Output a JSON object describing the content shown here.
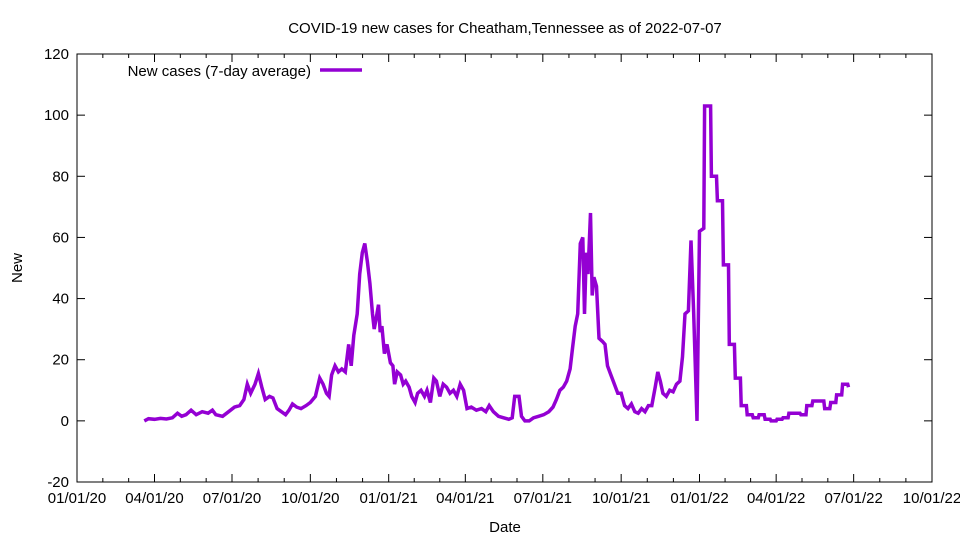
{
  "chart_data": {
    "type": "line",
    "title": "COVID-19 new cases for Cheatham,Tennessee as of 2022-07-07",
    "xlabel": "Date",
    "ylabel": "New",
    "xlim": [
      "2020-01-01",
      "2022-10-01"
    ],
    "ylim": [
      -20,
      120
    ],
    "grid": false,
    "legend_position": "top-left",
    "x_ticks": [
      "01/01/20",
      "04/01/20",
      "07/01/20",
      "10/01/20",
      "01/01/21",
      "04/01/21",
      "07/01/21",
      "10/01/21",
      "01/01/22",
      "04/01/22",
      "07/01/22",
      "10/01/22"
    ],
    "x_tick_dates": [
      "2020-01-01",
      "2020-04-01",
      "2020-07-01",
      "2020-10-01",
      "2021-01-01",
      "2021-04-01",
      "2021-07-01",
      "2021-10-01",
      "2022-01-01",
      "2022-04-01",
      "2022-07-01",
      "2022-10-01"
    ],
    "y_ticks": [
      -20,
      0,
      20,
      40,
      60,
      80,
      100,
      120
    ],
    "series": [
      {
        "name": "New cases (7-day average)",
        "color": "#9400d3",
        "points": [
          [
            "2020-03-20",
            0
          ],
          [
            "2020-03-25",
            0.7
          ],
          [
            "2020-04-01",
            0.5
          ],
          [
            "2020-04-08",
            0.8
          ],
          [
            "2020-04-15",
            0.6
          ],
          [
            "2020-04-22",
            1
          ],
          [
            "2020-04-28",
            2.5
          ],
          [
            "2020-05-03",
            1.5
          ],
          [
            "2020-05-08",
            2
          ],
          [
            "2020-05-14",
            3.5
          ],
          [
            "2020-05-20",
            2
          ],
          [
            "2020-05-27",
            3
          ],
          [
            "2020-06-03",
            2.5
          ],
          [
            "2020-06-08",
            3.5
          ],
          [
            "2020-06-12",
            2
          ],
          [
            "2020-06-20",
            1.5
          ],
          [
            "2020-06-27",
            3
          ],
          [
            "2020-07-04",
            4.5
          ],
          [
            "2020-07-10",
            5
          ],
          [
            "2020-07-15",
            7
          ],
          [
            "2020-07-19",
            12
          ],
          [
            "2020-07-23",
            9
          ],
          [
            "2020-07-28",
            12
          ],
          [
            "2020-08-01",
            15.5
          ],
          [
            "2020-08-05",
            11
          ],
          [
            "2020-08-09",
            7
          ],
          [
            "2020-08-14",
            8
          ],
          [
            "2020-08-18",
            7.5
          ],
          [
            "2020-08-23",
            4
          ],
          [
            "2020-08-28",
            3
          ],
          [
            "2020-09-02",
            2
          ],
          [
            "2020-09-06",
            3.5
          ],
          [
            "2020-09-10",
            5.5
          ],
          [
            "2020-09-15",
            4.5
          ],
          [
            "2020-09-20",
            4
          ],
          [
            "2020-09-26",
            5
          ],
          [
            "2020-10-01",
            6
          ],
          [
            "2020-10-07",
            8
          ],
          [
            "2020-10-12",
            14
          ],
          [
            "2020-10-16",
            12
          ],
          [
            "2020-10-20",
            9
          ],
          [
            "2020-10-23",
            8
          ],
          [
            "2020-10-26",
            15
          ],
          [
            "2020-10-30",
            18
          ],
          [
            "2020-11-03",
            16
          ],
          [
            "2020-11-07",
            17
          ],
          [
            "2020-11-11",
            16
          ],
          [
            "2020-11-15",
            25
          ],
          [
            "2020-11-18",
            18
          ],
          [
            "2020-11-21",
            28
          ],
          [
            "2020-11-25",
            35
          ],
          [
            "2020-11-28",
            48
          ],
          [
            "2020-12-01",
            55
          ],
          [
            "2020-12-04",
            58
          ],
          [
            "2020-12-07",
            52
          ],
          [
            "2020-12-10",
            45
          ],
          [
            "2020-12-13",
            35
          ],
          [
            "2020-12-15",
            30
          ],
          [
            "2020-12-17",
            33
          ],
          [
            "2020-12-20",
            38
          ],
          [
            "2020-12-22",
            29
          ],
          [
            "2020-12-24",
            31
          ],
          [
            "2020-12-27",
            22
          ],
          [
            "2020-12-30",
            25
          ],
          [
            "2021-01-03",
            19
          ],
          [
            "2021-01-06",
            18
          ],
          [
            "2021-01-08",
            12
          ],
          [
            "2021-01-11",
            16
          ],
          [
            "2021-01-15",
            15
          ],
          [
            "2021-01-18",
            12
          ],
          [
            "2021-01-21",
            13
          ],
          [
            "2021-01-25",
            11
          ],
          [
            "2021-01-28",
            8
          ],
          [
            "2021-02-01",
            6
          ],
          [
            "2021-02-04",
            9
          ],
          [
            "2021-02-08",
            10
          ],
          [
            "2021-02-12",
            8
          ],
          [
            "2021-02-15",
            10
          ],
          [
            "2021-02-19",
            6
          ],
          [
            "2021-02-23",
            14
          ],
          [
            "2021-02-26",
            13
          ],
          [
            "2021-03-02",
            8
          ],
          [
            "2021-03-06",
            12
          ],
          [
            "2021-03-10",
            11
          ],
          [
            "2021-03-14",
            9
          ],
          [
            "2021-03-18",
            10
          ],
          [
            "2021-03-22",
            8
          ],
          [
            "2021-03-26",
            12
          ],
          [
            "2021-03-30",
            10
          ],
          [
            "2021-04-03",
            4
          ],
          [
            "2021-04-08",
            4.5
          ],
          [
            "2021-04-14",
            3.5
          ],
          [
            "2021-04-20",
            4
          ],
          [
            "2021-04-25",
            3
          ],
          [
            "2021-04-29",
            5
          ],
          [
            "2021-05-04",
            3
          ],
          [
            "2021-05-10",
            1.5
          ],
          [
            "2021-05-16",
            1
          ],
          [
            "2021-05-22",
            0.5
          ],
          [
            "2021-05-26",
            1
          ],
          [
            "2021-05-29",
            8
          ],
          [
            "2021-06-03",
            8
          ],
          [
            "2021-06-06",
            1.5
          ],
          [
            "2021-06-10",
            0
          ],
          [
            "2021-06-15",
            0
          ],
          [
            "2021-06-20",
            1
          ],
          [
            "2021-06-26",
            1.5
          ],
          [
            "2021-07-02",
            2
          ],
          [
            "2021-07-08",
            3
          ],
          [
            "2021-07-13",
            4.5
          ],
          [
            "2021-07-17",
            7
          ],
          [
            "2021-07-21",
            10
          ],
          [
            "2021-07-25",
            11
          ],
          [
            "2021-07-29",
            13
          ],
          [
            "2021-08-02",
            17
          ],
          [
            "2021-08-05",
            24
          ],
          [
            "2021-08-08",
            31
          ],
          [
            "2021-08-11",
            35
          ],
          [
            "2021-08-14",
            58
          ],
          [
            "2021-08-17",
            60
          ],
          [
            "2021-08-19",
            35
          ],
          [
            "2021-08-21",
            55
          ],
          [
            "2021-08-23",
            48
          ],
          [
            "2021-08-26",
            68
          ],
          [
            "2021-08-28",
            41
          ],
          [
            "2021-08-30",
            47
          ],
          [
            "2021-09-02",
            44
          ],
          [
            "2021-09-05",
            27
          ],
          [
            "2021-09-09",
            26
          ],
          [
            "2021-09-12",
            25
          ],
          [
            "2021-09-15",
            18
          ],
          [
            "2021-09-19",
            15
          ],
          [
            "2021-09-23",
            12
          ],
          [
            "2021-09-27",
            9
          ],
          [
            "2021-10-01",
            9
          ],
          [
            "2021-10-05",
            5
          ],
          [
            "2021-10-09",
            4
          ],
          [
            "2021-10-13",
            5.5
          ],
          [
            "2021-10-17",
            3
          ],
          [
            "2021-10-21",
            2.5
          ],
          [
            "2021-10-25",
            4
          ],
          [
            "2021-10-29",
            3
          ],
          [
            "2021-11-02",
            5
          ],
          [
            "2021-11-06",
            5
          ],
          [
            "2021-11-10",
            11
          ],
          [
            "2021-11-13",
            16
          ],
          [
            "2021-11-16",
            13
          ],
          [
            "2021-11-19",
            9
          ],
          [
            "2021-11-23",
            8
          ],
          [
            "2021-11-27",
            10
          ],
          [
            "2021-12-01",
            9.5
          ],
          [
            "2021-12-05",
            12
          ],
          [
            "2021-12-09",
            13
          ],
          [
            "2021-12-12",
            21
          ],
          [
            "2021-12-15",
            35
          ],
          [
            "2021-12-19",
            36
          ],
          [
            "2021-12-22",
            59
          ],
          [
            "2021-12-25",
            36
          ],
          [
            "2021-12-29",
            0
          ],
          [
            "2022-01-01",
            62
          ],
          [
            "2022-01-06",
            63
          ],
          [
            "2022-01-07",
            103
          ],
          [
            "2022-01-14",
            103
          ],
          [
            "2022-01-15",
            80
          ],
          [
            "2022-01-21",
            80
          ],
          [
            "2022-01-22",
            72
          ],
          [
            "2022-01-28",
            72
          ],
          [
            "2022-01-29",
            51
          ],
          [
            "2022-02-04",
            51
          ],
          [
            "2022-02-05",
            25
          ],
          [
            "2022-02-11",
            25
          ],
          [
            "2022-02-12",
            14
          ],
          [
            "2022-02-18",
            14
          ],
          [
            "2022-02-19",
            5
          ],
          [
            "2022-02-25",
            5
          ],
          [
            "2022-02-26",
            2
          ],
          [
            "2022-03-04",
            2
          ],
          [
            "2022-03-05",
            1
          ],
          [
            "2022-03-11",
            1
          ],
          [
            "2022-03-12",
            2
          ],
          [
            "2022-03-18",
            2
          ],
          [
            "2022-03-19",
            0.5
          ],
          [
            "2022-03-25",
            0.5
          ],
          [
            "2022-03-26",
            0
          ],
          [
            "2022-04-01",
            0
          ],
          [
            "2022-04-02",
            0.5
          ],
          [
            "2022-04-08",
            0.5
          ],
          [
            "2022-04-09",
            1
          ],
          [
            "2022-04-15",
            1
          ],
          [
            "2022-04-16",
            2.5
          ],
          [
            "2022-04-29",
            2.5
          ],
          [
            "2022-04-30",
            2
          ],
          [
            "2022-05-06",
            2
          ],
          [
            "2022-05-07",
            5
          ],
          [
            "2022-05-13",
            5
          ],
          [
            "2022-05-14",
            6.5
          ],
          [
            "2022-05-27",
            6.5
          ],
          [
            "2022-05-28",
            4
          ],
          [
            "2022-06-03",
            4
          ],
          [
            "2022-06-04",
            6
          ],
          [
            "2022-06-10",
            6
          ],
          [
            "2022-06-11",
            8.5
          ],
          [
            "2022-06-17",
            8.5
          ],
          [
            "2022-06-18",
            12
          ],
          [
            "2022-06-24",
            12
          ],
          [
            "2022-06-25",
            11
          ]
        ]
      }
    ]
  }
}
